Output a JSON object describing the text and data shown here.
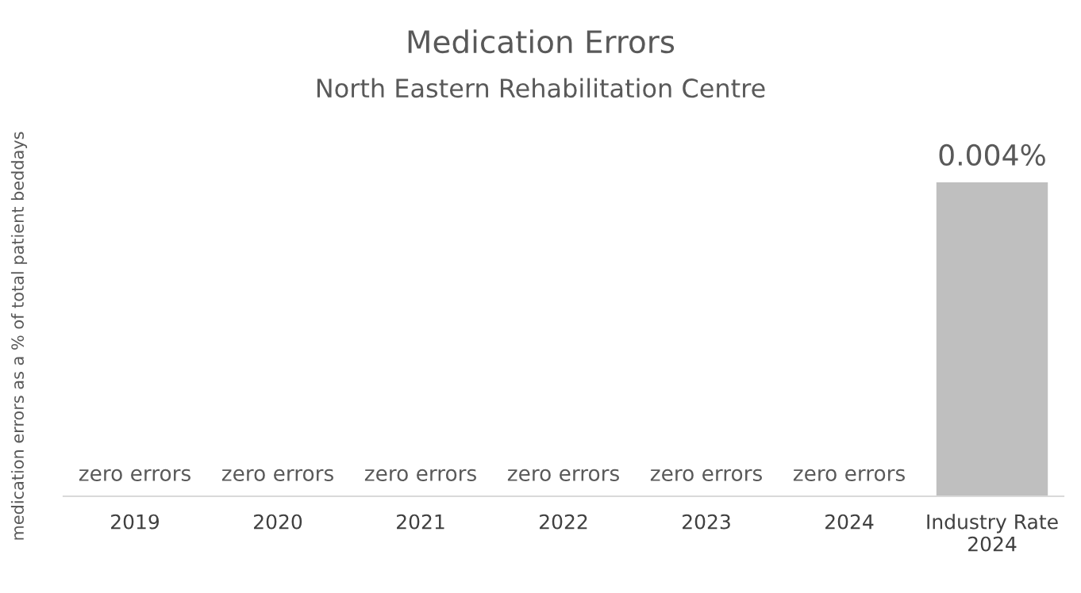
{
  "chart_data": {
    "type": "bar",
    "title": "Medication Errors",
    "subtitle": "North Eastern Rehabilitation Centre",
    "ylabel": "medication errors as a % of total patient beddays",
    "categories": [
      "2019",
      "2020",
      "2021",
      "2022",
      "2023",
      "2024",
      "Industry Rate\n2024"
    ],
    "values": [
      0,
      0,
      0,
      0,
      0,
      0,
      0.004
    ],
    "value_labels": [
      "zero errors",
      "zero errors",
      "zero errors",
      "zero errors",
      "zero errors",
      "zero errors",
      "0.004%"
    ],
    "color": "#bfbfbf",
    "grid": false,
    "legend": false
  }
}
